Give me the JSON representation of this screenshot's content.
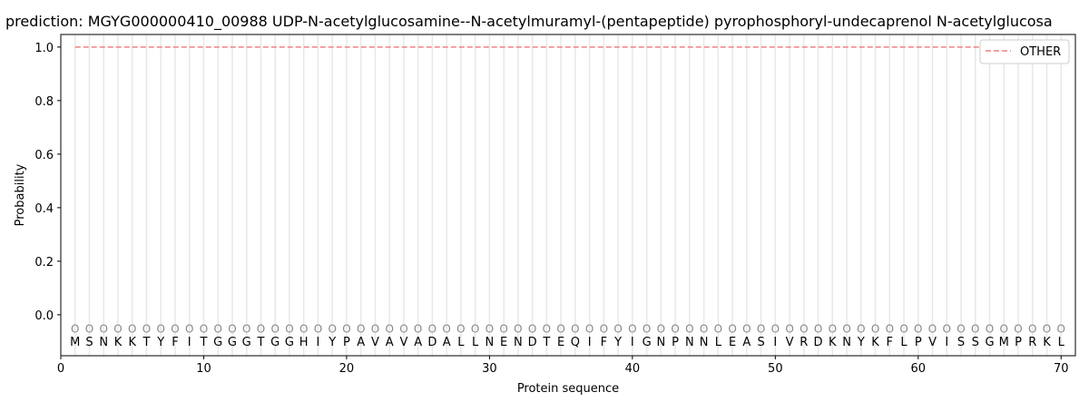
{
  "chart_data": {
    "type": "line",
    "title": "prediction: MGYG000000410_00988 UDP-N-acetylglucosamine--N-acetylmuramyl-(pentapeptide) pyrophosphoryl-undecaprenol N-acetylglucosa",
    "xlabel": "Protein sequence",
    "ylabel": "Probability",
    "xlim": [
      0,
      71
    ],
    "ylim": [
      -0.153,
      1.047
    ],
    "xticks": [
      0,
      10,
      20,
      30,
      40,
      50,
      60,
      70
    ],
    "yticks": [
      0.0,
      0.2,
      0.4,
      0.6,
      0.8,
      1.0
    ],
    "grid": "vertical lines at each residue",
    "legend_placement": "top-right",
    "sequence": [
      "M",
      "S",
      "N",
      "K",
      "K",
      "T",
      "Y",
      "F",
      "I",
      "T",
      "G",
      "G",
      "G",
      "T",
      "G",
      "G",
      "H",
      "I",
      "Y",
      "P",
      "A",
      "V",
      "A",
      "V",
      "A",
      "D",
      "A",
      "L",
      "L",
      "N",
      "E",
      "N",
      "D",
      "T",
      "E",
      "Q",
      "I",
      "F",
      "Y",
      "I",
      "G",
      "N",
      "P",
      "N",
      "N",
      "L",
      "E",
      "A",
      "S",
      "I",
      "V",
      "R",
      "D",
      "K",
      "N",
      "Y",
      "K",
      "F",
      "L",
      "P",
      "V",
      "I",
      "S",
      "S",
      "G",
      "M",
      "P",
      "R",
      "K",
      "L"
    ],
    "marker_label": "O",
    "marker_y": -0.05,
    "series": [
      {
        "name": "OTHER",
        "color": "#f08080",
        "style": "dashed",
        "x_start": 1,
        "x_end": 70,
        "value": 1.0
      }
    ]
  }
}
